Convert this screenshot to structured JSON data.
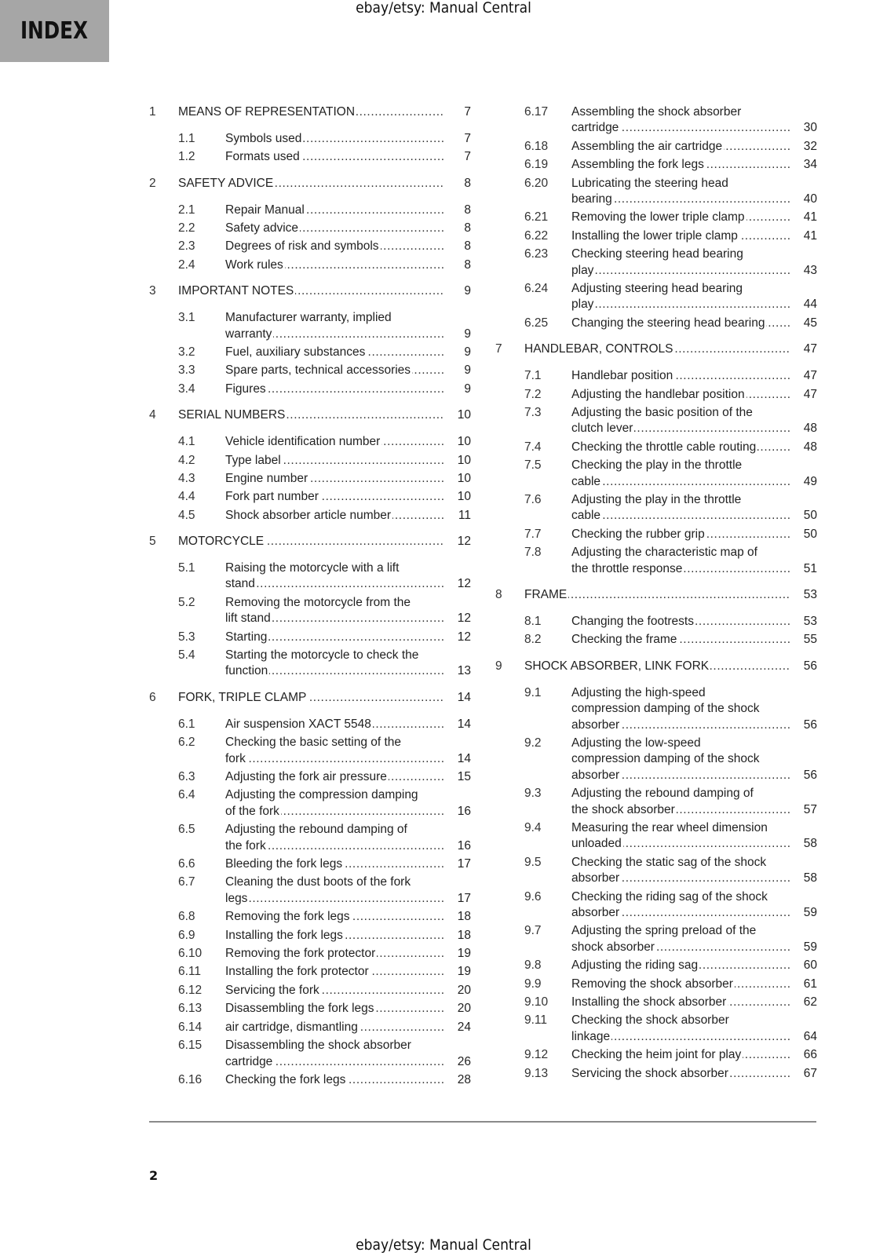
{
  "header": {
    "index_label": "INDEX",
    "watermark": "ebay/etsy: Manual Central"
  },
  "footer": {
    "page_number": "2",
    "watermark": "ebay/etsy: Manual Central"
  },
  "colors": {
    "index_box": "#a6a6a6",
    "rule": "#8a8a8a"
  },
  "toc": {
    "left": [
      {
        "num": "1",
        "title": "MEANS OF REPRESENTATION",
        "page": "7",
        "level": "chapter"
      },
      {
        "num": "1.1",
        "title": "Symbols used",
        "page": "7",
        "level": "sub"
      },
      {
        "num": "1.2",
        "title": "Formats used",
        "page": "7",
        "level": "sub"
      },
      {
        "num": "2",
        "title": "SAFETY ADVICE",
        "page": "8",
        "level": "chapter"
      },
      {
        "num": "2.1",
        "title": "Repair Manual",
        "page": "8",
        "level": "sub"
      },
      {
        "num": "2.2",
        "title": "Safety advice",
        "page": "8",
        "level": "sub"
      },
      {
        "num": "2.3",
        "title": "Degrees of risk and symbols",
        "page": "8",
        "level": "sub"
      },
      {
        "num": "2.4",
        "title": "Work rules",
        "page": "8",
        "level": "sub"
      },
      {
        "num": "3",
        "title": "IMPORTANT NOTES",
        "page": "9",
        "level": "chapter"
      },
      {
        "num": "3.1",
        "title": "Manufacturer warranty, implied\nwarranty",
        "page": "9",
        "level": "sub"
      },
      {
        "num": "3.2",
        "title": "Fuel, auxiliary substances",
        "page": "9",
        "level": "sub"
      },
      {
        "num": "3.3",
        "title": "Spare parts, technical accessories",
        "page": "9",
        "level": "sub"
      },
      {
        "num": "3.4",
        "title": "Figures",
        "page": "9",
        "level": "sub"
      },
      {
        "num": "4",
        "title": "SERIAL NUMBERS",
        "page": "10",
        "level": "chapter"
      },
      {
        "num": "4.1",
        "title": "Vehicle identification number",
        "page": "10",
        "level": "sub"
      },
      {
        "num": "4.2",
        "title": "Type label",
        "page": "10",
        "level": "sub"
      },
      {
        "num": "4.3",
        "title": "Engine number",
        "page": "10",
        "level": "sub"
      },
      {
        "num": "4.4",
        "title": "Fork part number",
        "page": "10",
        "level": "sub"
      },
      {
        "num": "4.5",
        "title": "Shock absorber article number",
        "page": "11",
        "level": "sub"
      },
      {
        "num": "5",
        "title": "MOTORCYCLE",
        "page": "12",
        "level": "chapter"
      },
      {
        "num": "5.1",
        "title": "Raising the motorcycle with a lift\nstand",
        "page": "12",
        "level": "sub"
      },
      {
        "num": "5.2",
        "title": "Removing the motorcycle from the\nlift stand",
        "page": "12",
        "level": "sub"
      },
      {
        "num": "5.3",
        "title": "Starting",
        "page": "12",
        "level": "sub"
      },
      {
        "num": "5.4",
        "title": "Starting the motorcycle to check the\nfunction",
        "page": "13",
        "level": "sub"
      },
      {
        "num": "6",
        "title": "FORK, TRIPLE CLAMP",
        "page": "14",
        "level": "chapter"
      },
      {
        "num": "6.1",
        "title": "Air suspension XACT 5548",
        "page": "14",
        "level": "sub"
      },
      {
        "num": "6.2",
        "title": "Checking the basic setting of the\nfork",
        "page": "14",
        "level": "sub"
      },
      {
        "num": "6.3",
        "title": "Adjusting the fork air pressure",
        "page": "15",
        "level": "sub"
      },
      {
        "num": "6.4",
        "title": "Adjusting the compression damping\nof the fork",
        "page": "16",
        "level": "sub"
      },
      {
        "num": "6.5",
        "title": "Adjusting the rebound damping of\nthe fork",
        "page": "16",
        "level": "sub"
      },
      {
        "num": "6.6",
        "title": "Bleeding the fork legs",
        "page": "17",
        "level": "sub"
      },
      {
        "num": "6.7",
        "title": "Cleaning the dust boots of the fork\nlegs",
        "page": "17",
        "level": "sub"
      },
      {
        "num": "6.8",
        "title": "Removing the fork legs",
        "page": "18",
        "level": "sub"
      },
      {
        "num": "6.9",
        "title": "Installing the fork legs",
        "page": "18",
        "level": "sub"
      },
      {
        "num": "6.10",
        "title": "Removing the fork protector",
        "page": "19",
        "level": "sub"
      },
      {
        "num": "6.11",
        "title": "Installing the fork protector",
        "page": "19",
        "level": "sub"
      },
      {
        "num": "6.12",
        "title": "Servicing the fork",
        "page": "20",
        "level": "sub"
      },
      {
        "num": "6.13",
        "title": "Disassembling the fork legs",
        "page": "20",
        "level": "sub"
      },
      {
        "num": "6.14",
        "title": "air cartridge, dismantling",
        "page": "24",
        "level": "sub"
      },
      {
        "num": "6.15",
        "title": "Disassembling the shock absorber\ncartridge",
        "page": "26",
        "level": "sub"
      },
      {
        "num": "6.16",
        "title": "Checking the fork legs",
        "page": "28",
        "level": "sub"
      }
    ],
    "right": [
      {
        "num": "6.17",
        "title": "Assembling the shock absorber\ncartridge",
        "page": "30",
        "level": "sub"
      },
      {
        "num": "6.18",
        "title": "Assembling the air cartridge",
        "page": "32",
        "level": "sub"
      },
      {
        "num": "6.19",
        "title": "Assembling the fork legs",
        "page": "34",
        "level": "sub"
      },
      {
        "num": "6.20",
        "title": "Lubricating the steering head\nbearing",
        "page": "40",
        "level": "sub"
      },
      {
        "num": "6.21",
        "title": "Removing the lower triple clamp",
        "page": "41",
        "level": "sub"
      },
      {
        "num": "6.22",
        "title": "Installing the lower triple clamp",
        "page": "41",
        "level": "sub"
      },
      {
        "num": "6.23",
        "title": "Checking steering head bearing\nplay",
        "page": "43",
        "level": "sub"
      },
      {
        "num": "6.24",
        "title": "Adjusting steering head bearing\nplay",
        "page": "44",
        "level": "sub"
      },
      {
        "num": "6.25",
        "title": "Changing the steering head bearing",
        "page": "45",
        "level": "sub"
      },
      {
        "num": "7",
        "title": "HANDLEBAR, CONTROLS",
        "page": "47",
        "level": "chapter"
      },
      {
        "num": "7.1",
        "title": "Handlebar position",
        "page": "47",
        "level": "sub"
      },
      {
        "num": "7.2",
        "title": "Adjusting the handlebar position",
        "page": "47",
        "level": "sub"
      },
      {
        "num": "7.3",
        "title": "Adjusting the basic position of the\nclutch lever",
        "page": "48",
        "level": "sub"
      },
      {
        "num": "7.4",
        "title": "Checking the throttle cable routing",
        "page": "48",
        "level": "sub"
      },
      {
        "num": "7.5",
        "title": "Checking the play in the throttle\ncable",
        "page": "49",
        "level": "sub"
      },
      {
        "num": "7.6",
        "title": "Adjusting the play in the throttle\ncable",
        "page": "50",
        "level": "sub"
      },
      {
        "num": "7.7",
        "title": "Checking the rubber grip",
        "page": "50",
        "level": "sub"
      },
      {
        "num": "7.8",
        "title": "Adjusting the characteristic map of\nthe throttle response",
        "page": "51",
        "level": "sub"
      },
      {
        "num": "8",
        "title": "FRAME",
        "page": "53",
        "level": "chapter"
      },
      {
        "num": "8.1",
        "title": "Changing the footrests",
        "page": "53",
        "level": "sub"
      },
      {
        "num": "8.2",
        "title": "Checking the frame",
        "page": "55",
        "level": "sub"
      },
      {
        "num": "9",
        "title": "SHOCK ABSORBER, LINK FORK",
        "page": "56",
        "level": "chapter"
      },
      {
        "num": "9.1",
        "title": "Adjusting the high-speed\ncompression damping of the shock\nabsorber",
        "page": "56",
        "level": "sub"
      },
      {
        "num": "9.2",
        "title": "Adjusting the low-speed\ncompression damping of the shock\nabsorber",
        "page": "56",
        "level": "sub"
      },
      {
        "num": "9.3",
        "title": "Adjusting the rebound damping of\nthe shock absorber",
        "page": "57",
        "level": "sub"
      },
      {
        "num": "9.4",
        "title": "Measuring the rear wheel dimension\nunloaded",
        "page": "58",
        "level": "sub"
      },
      {
        "num": "9.5",
        "title": "Checking the static sag of the shock\nabsorber",
        "page": "58",
        "level": "sub"
      },
      {
        "num": "9.6",
        "title": "Checking the riding sag of the shock\nabsorber",
        "page": "59",
        "level": "sub"
      },
      {
        "num": "9.7",
        "title": "Adjusting the spring preload of the\nshock absorber",
        "page": "59",
        "level": "sub"
      },
      {
        "num": "9.8",
        "title": "Adjusting the riding sag",
        "page": "60",
        "level": "sub"
      },
      {
        "num": "9.9",
        "title": "Removing the shock absorber",
        "page": "61",
        "level": "sub"
      },
      {
        "num": "9.10",
        "title": "Installing the shock absorber",
        "page": "62",
        "level": "sub"
      },
      {
        "num": "9.11",
        "title": "Checking the shock absorber\nlinkage",
        "page": "64",
        "level": "sub"
      },
      {
        "num": "9.12",
        "title": "Checking the heim joint for play",
        "page": "66",
        "level": "sub"
      },
      {
        "num": "9.13",
        "title": "Servicing the shock absorber",
        "page": "67",
        "level": "sub"
      }
    ]
  }
}
